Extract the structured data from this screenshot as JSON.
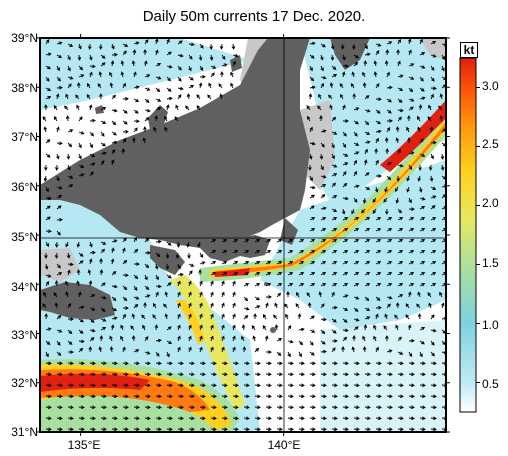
{
  "title": "Daily 50m currents 17 Dec. 2020.",
  "map": {
    "lat_labels": [
      "39°N",
      "38°N",
      "37°N",
      "36°N",
      "35°N",
      "34°N",
      "33°N",
      "32°N",
      "31°N"
    ],
    "lat_values": [
      39,
      38,
      37,
      36,
      35,
      34,
      33,
      32,
      31
    ],
    "lon_labels": [
      "135°E",
      "140°E"
    ],
    "lon_values": [
      135,
      140
    ],
    "lon_range": [
      134,
      144
    ],
    "lat_range": [
      31,
      39
    ]
  },
  "colorbar": {
    "unit": "kt",
    "ticks": [
      "3.0",
      "2.5",
      "2.0",
      "1.5",
      "1.0",
      "0.5"
    ],
    "tick_values": [
      3.0,
      2.5,
      2.0,
      1.5,
      1.0,
      0.5
    ],
    "range": [
      0.25,
      3.25
    ],
    "colors": [
      "#ffffff",
      "#b8e8f0",
      "#7fd0e0",
      "#a8e0a0",
      "#e8e860",
      "#ffd020",
      "#ff9a10",
      "#ff5a08",
      "#e02010"
    ]
  },
  "colors": {
    "land": "#606060",
    "shelf": "#c8c8c8",
    "sea": "#ffffff",
    "grid": "#000000"
  }
}
